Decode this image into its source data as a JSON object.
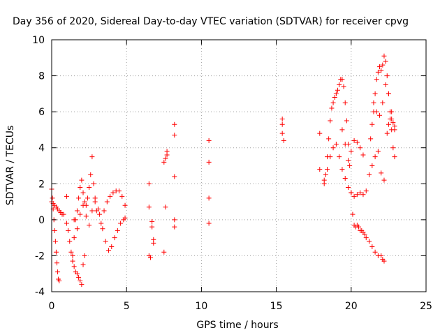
{
  "chart_data": {
    "type": "scatter",
    "title": "Day 356 of 2020, Sidereal Day-to-day VTEC variation (SDTVAR) for receiver cpvg",
    "xlabel": "GPS time / hours",
    "ylabel": "SDTVAR / TECUs",
    "xlim": [
      0,
      25
    ],
    "ylim": [
      -4,
      10
    ],
    "xticks": [
      0,
      5,
      10,
      15,
      20,
      25
    ],
    "xtick_labels": [
      "0",
      "5",
      "10",
      "15",
      "20",
      "25"
    ],
    "yticks": [
      -4,
      -2,
      0,
      2,
      4,
      6,
      8,
      10
    ],
    "ytick_labels": [
      "-4",
      "-2",
      "0",
      "2",
      "4",
      "6",
      "8",
      "10"
    ],
    "grid": true,
    "marker": "+",
    "color": "#ff0000",
    "series": [
      {
        "name": "SDTVAR",
        "x": [
          0.0,
          0.05,
          0.1,
          0.15,
          0.2,
          0.25,
          0.3,
          0.35,
          0.4,
          0.45,
          0.5,
          0.0,
          0.1,
          0.2,
          0.3,
          0.4,
          0.5,
          0.6,
          0.7,
          0.8,
          1.0,
          1.0,
          1.1,
          1.2,
          1.3,
          1.4,
          1.5,
          1.6,
          1.7,
          1.8,
          1.9,
          2.0,
          2.1,
          2.2,
          1.4,
          1.5,
          1.6,
          1.7,
          1.8,
          1.9,
          2.0,
          2.1,
          2.2,
          2.3,
          2.4,
          2.5,
          2.6,
          2.7,
          2.8,
          2.9,
          3.0,
          1.5,
          1.7,
          1.9,
          2.1,
          2.3,
          2.5,
          2.7,
          2.9,
          3.1,
          3.3,
          3.2,
          3.4,
          3.6,
          3.8,
          4.0,
          4.2,
          4.4,
          4.6,
          4.8,
          4.9,
          3.5,
          3.7,
          3.9,
          4.1,
          4.3,
          4.5,
          4.7,
          4.9,
          6.5,
          6.5,
          6.5,
          6.6,
          6.7,
          6.7,
          6.8,
          6.8,
          7.5,
          7.6,
          7.7,
          7.7,
          7.6,
          7.5,
          8.2,
          8.2,
          8.2,
          8.2,
          8.2,
          10.5,
          10.5,
          10.5,
          10.5,
          15.4,
          15.4,
          15.4,
          15.5,
          17.9,
          17.9,
          18.2,
          18.3,
          18.4,
          18.5,
          18.6,
          18.7,
          18.8,
          18.9,
          19.0,
          19.1,
          19.2,
          19.3,
          19.4,
          19.5,
          19.6,
          19.7,
          19.8,
          19.9,
          20.0,
          20.1,
          20.2,
          20.3,
          20.4,
          20.5,
          20.6,
          20.7,
          20.8,
          20.9,
          21.0,
          21.2,
          21.4,
          21.6,
          21.8,
          22.0,
          22.1,
          22.2,
          18.2,
          18.4,
          18.6,
          18.8,
          19.0,
          19.2,
          19.4,
          19.6,
          19.8,
          20.0,
          20.2,
          20.4,
          20.6,
          20.8,
          21.0,
          21.2,
          21.4,
          21.6,
          21.8,
          22.0,
          22.2,
          19.4,
          19.6,
          19.8,
          20.0,
          20.2,
          20.4,
          20.6,
          20.8,
          21.3,
          21.4,
          21.5,
          21.6,
          21.7,
          21.8,
          21.9,
          22.0,
          22.1,
          22.2,
          22.3,
          22.4,
          22.5,
          22.6,
          22.7,
          22.8,
          22.9,
          21.5,
          21.7,
          21.9,
          22.1,
          22.3,
          22.5,
          22.7,
          22.9,
          22.4,
          22.5,
          22.6,
          22.7,
          22.8,
          22.9
        ],
        "y": [
          1.7,
          1.2,
          0.6,
          0.0,
          -0.6,
          -1.2,
          -1.8,
          -2.4,
          -2.9,
          -3.3,
          -3.4,
          1.0,
          0.9,
          0.8,
          0.7,
          0.6,
          0.5,
          0.4,
          0.3,
          0.3,
          1.3,
          -0.2,
          -0.6,
          -1.2,
          -1.8,
          -2.3,
          -2.6,
          -2.9,
          -3.0,
          -3.2,
          -3.4,
          -3.6,
          -2.5,
          -2.0,
          -2.0,
          -1.0,
          0.0,
          0.5,
          1.2,
          1.8,
          2.2,
          1.5,
          1.0,
          0.8,
          1.2,
          1.8,
          2.5,
          3.5,
          2.0,
          1.0,
          0.5,
          0.0,
          -0.5,
          0.3,
          0.8,
          0.2,
          -0.3,
          0.5,
          1.2,
          0.6,
          -0.2,
          0.3,
          -0.5,
          -1.2,
          -1.7,
          -1.5,
          -1.0,
          -0.6,
          -0.2,
          0.0,
          0.1,
          0.5,
          1.0,
          1.3,
          1.5,
          1.6,
          1.6,
          1.3,
          0.8,
          2.0,
          0.7,
          -2.0,
          -2.1,
          -0.1,
          -0.4,
          -1.1,
          -1.3,
          3.2,
          3.4,
          3.8,
          3.6,
          0.7,
          -1.8,
          5.3,
          4.7,
          2.4,
          0.0,
          -0.4,
          4.4,
          3.2,
          1.2,
          -0.2,
          5.6,
          5.3,
          4.8,
          4.4,
          4.8,
          2.8,
          2.2,
          2.5,
          3.5,
          4.5,
          5.5,
          6.2,
          6.5,
          6.8,
          7.0,
          7.2,
          7.5,
          7.8,
          7.8,
          7.4,
          6.5,
          5.5,
          4.2,
          3.0,
          1.5,
          0.3,
          -0.3,
          -0.4,
          -0.3,
          -0.4,
          -0.6,
          -0.6,
          -0.7,
          -0.8,
          -1.0,
          -1.2,
          -1.5,
          -1.8,
          -2.0,
          -2.0,
          -2.2,
          -2.3,
          2.0,
          2.8,
          3.5,
          4.0,
          4.2,
          3.5,
          2.8,
          2.3,
          1.8,
          1.5,
          1.3,
          1.4,
          1.5,
          1.4,
          1.6,
          2.5,
          3.0,
          3.5,
          3.8,
          2.6,
          2.2,
          5.0,
          4.2,
          3.3,
          3.8,
          4.4,
          4.3,
          4.0,
          3.6,
          4.5,
          5.3,
          6.0,
          7.0,
          7.8,
          8.2,
          8.5,
          8.3,
          8.6,
          9.1,
          8.8,
          8.0,
          7.0,
          6.0,
          5.0,
          4.0,
          3.5,
          6.5,
          6.0,
          5.8,
          6.5,
          7.5,
          7.0,
          6.0,
          5.2,
          4.8,
          5.3,
          5.6,
          5.6,
          5.4,
          5.0
        ]
      }
    ]
  }
}
